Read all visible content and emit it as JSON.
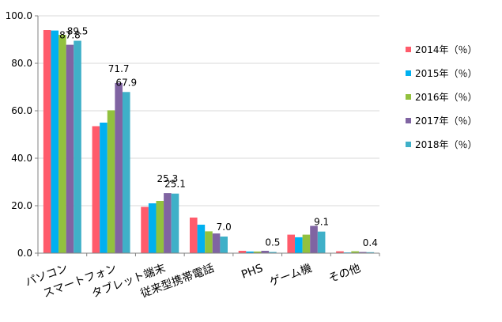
{
  "chart_data": {
    "type": "bar",
    "title": "",
    "xlabel": "",
    "ylabel": "",
    "ylim": [
      0,
      100
    ],
    "yticks": [
      "0.0",
      "20.0",
      "40.0",
      "60.0",
      "80.0",
      "100.0"
    ],
    "grid": true,
    "legend_position": "right",
    "categories": [
      "パソコン",
      "スマートフォン",
      "タブレット端末",
      "従来型携帯電話",
      "PHS",
      "ゲーム機",
      "その他"
    ],
    "series": [
      {
        "name": "2014年（％）",
        "color": "#ff5b6b",
        "values": [
          94.0,
          53.5,
          19.5,
          15.0,
          1.0,
          7.8,
          0.8
        ]
      },
      {
        "name": "2015年（％）",
        "color": "#00b0f0",
        "values": [
          93.8,
          55.0,
          21.0,
          12.0,
          0.7,
          6.7,
          0.3
        ]
      },
      {
        "name": "2016年（％）",
        "color": "#92c13e",
        "values": [
          92.0,
          60.2,
          22.0,
          9.2,
          0.7,
          7.8,
          0.8
        ]
      },
      {
        "name": "2017年（％）",
        "color": "#8064a2",
        "values": [
          87.8,
          71.7,
          25.3,
          8.3,
          1.0,
          11.5,
          0.5
        ]
      },
      {
        "name": "2018年（％）",
        "color": "#3fb0c8",
        "values": [
          89.5,
          67.9,
          25.1,
          7.0,
          0.5,
          9.1,
          0.4
        ]
      }
    ],
    "data_labels": [
      {
        "category": 0,
        "series": 3,
        "text": "87.8"
      },
      {
        "category": 0,
        "series": 4,
        "text": "89.5"
      },
      {
        "category": 1,
        "series": 3,
        "text": "71.7"
      },
      {
        "category": 1,
        "series": 4,
        "text": "67.9"
      },
      {
        "category": 2,
        "series": 3,
        "text": "25.3"
      },
      {
        "category": 2,
        "series": 4,
        "text": "25.1"
      },
      {
        "category": 3,
        "series": 4,
        "text": "7.0"
      },
      {
        "category": 4,
        "series": 4,
        "text": "0.5"
      },
      {
        "category": 5,
        "series": 4,
        "text": "9.1"
      },
      {
        "category": 6,
        "series": 4,
        "text": "0.4"
      }
    ]
  }
}
